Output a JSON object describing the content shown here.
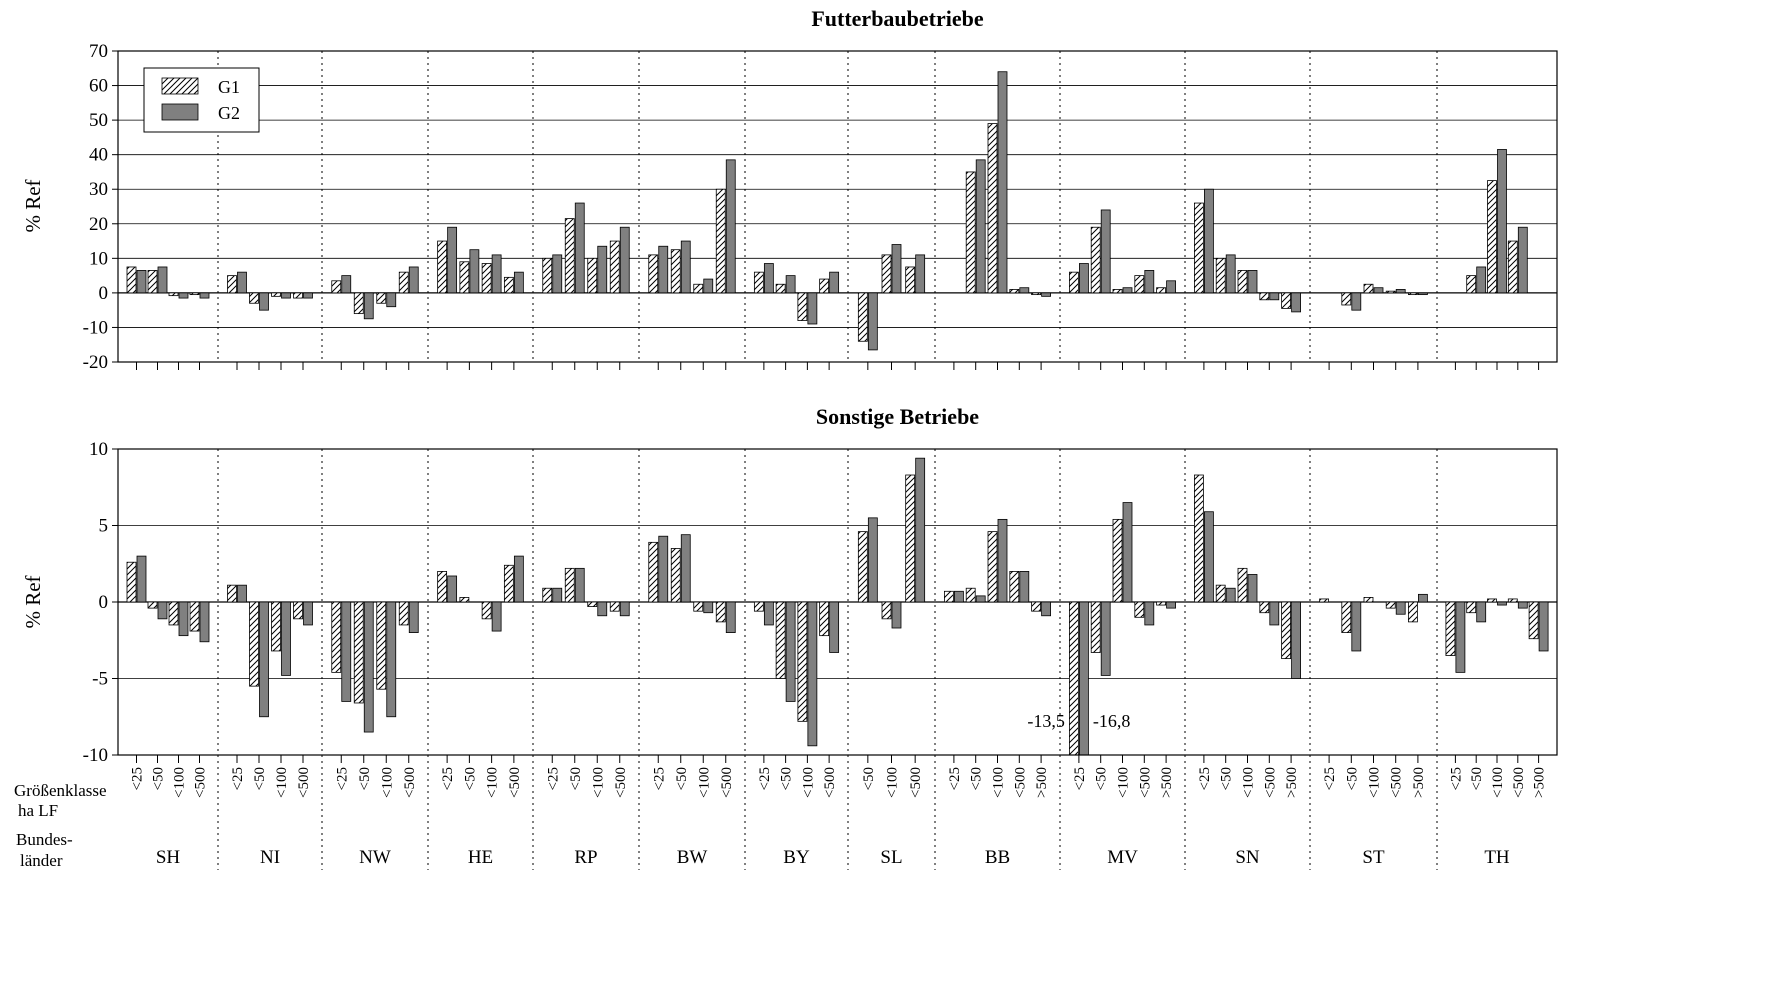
{
  "colors": {
    "g1_fill": "#ffffff",
    "g1_hatch": "#000000",
    "g2_fill": "#808080",
    "grid": "#000000"
  },
  "legend": {
    "placement": "top-left",
    "entries": [
      "G1",
      "G2"
    ]
  },
  "labels": {
    "row1_line1": "Größenklasse",
    "row1_line2": "ha LF",
    "row2_line1": "Bundes-",
    "row2_line2": "länder"
  },
  "chart_data": [
    {
      "type": "bar",
      "title": "Futterbaubetriebe",
      "ylabel": "% Ref",
      "ylim": [
        -20,
        70
      ],
      "yticks": [
        -20,
        -10,
        0,
        10,
        20,
        30,
        40,
        50,
        60,
        70
      ],
      "grid": true,
      "groups": [
        {
          "state": "SH",
          "classes": [
            "<25",
            "<50",
            "<100",
            "<500"
          ],
          "G1": [
            7.5,
            6.5,
            -0.8,
            -0.5
          ],
          "G2": [
            6.5,
            7.5,
            -1.5,
            -1.5
          ]
        },
        {
          "state": "NI",
          "classes": [
            "<25",
            "<50",
            "<100",
            "<500"
          ],
          "G1": [
            5,
            -3,
            -1,
            -1.5
          ],
          "G2": [
            6,
            -5,
            -1.5,
            -1.5
          ]
        },
        {
          "state": "NW",
          "classes": [
            "<25",
            "<50",
            "<100",
            "<500"
          ],
          "G1": [
            3.5,
            -6,
            -3,
            6
          ],
          "G2": [
            5,
            -7.5,
            -4,
            7.5
          ]
        },
        {
          "state": "HE",
          "classes": [
            "<25",
            "<50",
            "<100",
            "<500"
          ],
          "G1": [
            15,
            9,
            8.5,
            4.5
          ],
          "G2": [
            19,
            12.5,
            11,
            6
          ]
        },
        {
          "state": "RP",
          "classes": [
            "<25",
            "<50",
            "<100",
            "<500"
          ],
          "G1": [
            10,
            21.5,
            10,
            15
          ],
          "G2": [
            11,
            26,
            13.5,
            19
          ]
        },
        {
          "state": "BW",
          "classes": [
            "<25",
            "<50",
            "<100",
            "<500"
          ],
          "G1": [
            11,
            12.5,
            2.5,
            30
          ],
          "G2": [
            13.5,
            15,
            4,
            38.5
          ]
        },
        {
          "state": "BY",
          "classes": [
            "<25",
            "<50",
            "<100",
            "<500"
          ],
          "G1": [
            6,
            2.5,
            -8,
            4
          ],
          "G2": [
            8.5,
            5,
            -9,
            6
          ]
        },
        {
          "state": "SL",
          "classes": [
            "<50",
            "<100",
            "<500"
          ],
          "G1": [
            -14,
            11,
            7.5
          ],
          "G2": [
            -16.5,
            14,
            11
          ]
        },
        {
          "state": "BB",
          "classes": [
            "<25",
            "<50",
            "<100",
            "<500",
            ">500"
          ],
          "G1": [
            0,
            35,
            49,
            1,
            -0.5
          ],
          "G2": [
            0,
            38.5,
            64,
            1.5,
            -1
          ]
        },
        {
          "state": "MV",
          "classes": [
            "<25",
            "<50",
            "<100",
            "<500",
            ">500"
          ],
          "G1": [
            6,
            19,
            1,
            5,
            1.5
          ],
          "G2": [
            8.5,
            24,
            1.5,
            6.5,
            3.5
          ]
        },
        {
          "state": "SN",
          "classes": [
            "<25",
            "<50",
            "<100",
            "<500",
            ">500"
          ],
          "G1": [
            26,
            10,
            6.5,
            -2,
            -4.5
          ],
          "G2": [
            30,
            11,
            6.5,
            -2,
            -5.5
          ]
        },
        {
          "state": "ST",
          "classes": [
            "<25",
            "<50",
            "<100",
            "<500",
            ">500"
          ],
          "G1": [
            0,
            -3.5,
            2.5,
            0.5,
            -0.5
          ],
          "G2": [
            0,
            -5,
            1.5,
            1,
            -0.5
          ]
        },
        {
          "state": "TH",
          "classes": [
            "<25",
            "<50",
            "<100",
            "<500",
            ">500"
          ],
          "G1": [
            0,
            5,
            32.5,
            15,
            0
          ],
          "G2": [
            0,
            7.5,
            41.5,
            19,
            0
          ]
        }
      ]
    },
    {
      "type": "bar",
      "title": "Sonstige Betriebe",
      "ylabel": "% Ref",
      "ylim": [
        -10,
        10
      ],
      "yticks": [
        -10,
        -5,
        0,
        5,
        10
      ],
      "grid": true,
      "annotations": [
        "-13,5",
        "-16,8"
      ],
      "groups": [
        {
          "state": "SH",
          "classes": [
            "<25",
            "<50",
            "<100",
            "<500"
          ],
          "G1": [
            2.6,
            -0.4,
            -1.5,
            -1.9
          ],
          "G2": [
            3,
            -1.1,
            -2.2,
            -2.6
          ]
        },
        {
          "state": "NI",
          "classes": [
            "<25",
            "<50",
            "<100",
            "<500"
          ],
          "G1": [
            1.1,
            -5.5,
            -3.2,
            -1.1
          ],
          "G2": [
            1.1,
            -7.5,
            -4.8,
            -1.5
          ]
        },
        {
          "state": "NW",
          "classes": [
            "<25",
            "<50",
            "<100",
            "<500"
          ],
          "G1": [
            -4.6,
            -6.6,
            -5.7,
            -1.5
          ],
          "G2": [
            -6.5,
            -8.5,
            -7.5,
            -2
          ]
        },
        {
          "state": "HE",
          "classes": [
            "<25",
            "<50",
            "<100",
            "<500"
          ],
          "G1": [
            2,
            0.3,
            -1.1,
            2.4
          ],
          "G2": [
            1.7,
            0,
            -1.9,
            3
          ]
        },
        {
          "state": "RP",
          "classes": [
            "<25",
            "<50",
            "<100",
            "<500"
          ],
          "G1": [
            0.9,
            2.2,
            -0.3,
            -0.6
          ],
          "G2": [
            0.9,
            2.2,
            -0.9,
            -0.9
          ]
        },
        {
          "state": "BW",
          "classes": [
            "<25",
            "<50",
            "<100",
            "<500"
          ],
          "G1": [
            3.9,
            3.5,
            -0.6,
            -1.3
          ],
          "G2": [
            4.3,
            4.4,
            -0.7,
            -2
          ]
        },
        {
          "state": "BY",
          "classes": [
            "<25",
            "<50",
            "<100",
            "<500"
          ],
          "G1": [
            -0.6,
            -5,
            -7.8,
            -2.2
          ],
          "G2": [
            -1.5,
            -6.5,
            -9.4,
            -3.3
          ]
        },
        {
          "state": "SL",
          "classes": [
            "<50",
            "<100",
            "<500"
          ],
          "G1": [
            4.6,
            -1.1,
            8.3
          ],
          "G2": [
            5.5,
            -1.7,
            9.4
          ]
        },
        {
          "state": "BB",
          "classes": [
            "<25",
            "<50",
            "<100",
            "<500",
            ">500"
          ],
          "G1": [
            0.7,
            0.9,
            4.6,
            2,
            -0.6
          ],
          "G2": [
            0.7,
            0.4,
            5.4,
            2,
            -0.9
          ]
        },
        {
          "state": "MV",
          "classes": [
            "<25",
            "<50",
            "<100",
            "<500",
            ">500"
          ],
          "G1": [
            -13.5,
            -3.3,
            5.4,
            -1,
            -0.2
          ],
          "G2": [
            -16.8,
            -4.8,
            6.5,
            -1.5,
            -0.4
          ]
        },
        {
          "state": "SN",
          "classes": [
            "<25",
            "<50",
            "<100",
            "<500",
            ">500"
          ],
          "G1": [
            8.3,
            1.1,
            2.2,
            -0.7,
            -3.7
          ],
          "G2": [
            5.9,
            0.9,
            1.8,
            -1.5,
            -5
          ]
        },
        {
          "state": "ST",
          "classes": [
            "<25",
            "<50",
            "<100",
            "<500",
            ">500"
          ],
          "G1": [
            0.2,
            -2,
            0.3,
            -0.4,
            -1.3
          ],
          "G2": [
            0,
            -3.2,
            0,
            -0.8,
            0.5
          ]
        },
        {
          "state": "TH",
          "classes": [
            "<25",
            "<50",
            "<100",
            "<500",
            ">500"
          ],
          "G1": [
            -3.5,
            -0.7,
            0.2,
            0.2,
            -2.4
          ],
          "G2": [
            -4.6,
            -1.3,
            -0.2,
            -0.4,
            -3.2
          ]
        }
      ]
    }
  ]
}
